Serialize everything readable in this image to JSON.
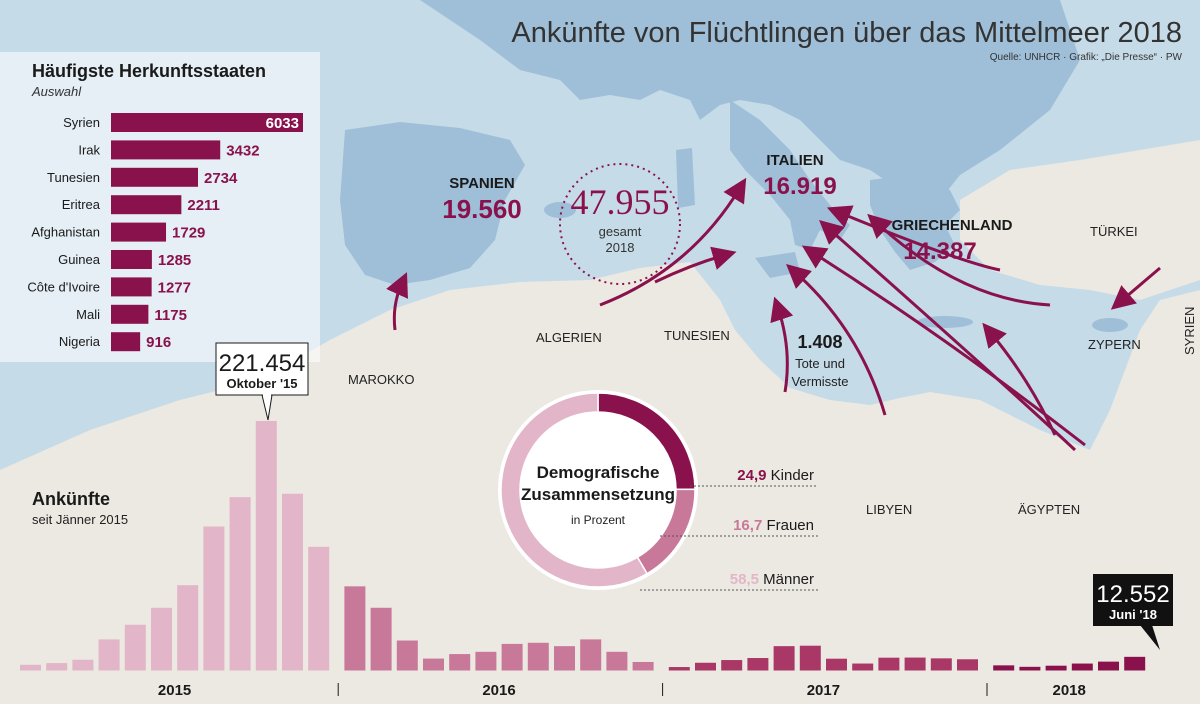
{
  "title": "Ankünfte von Flüchtlingen über das Mittelmeer 2018",
  "source": "Quelle: UNHCR · Grafik: „Die Presse“ · PW",
  "colors": {
    "sea": "#c6dbe8",
    "sea_shelf": "#b2cde0",
    "land": "#ece9e2",
    "land_europe": "#9fbfd8",
    "accent": "#8a124c",
    "pink_2015": "#e3b5c8",
    "pink_2016": "#c87899",
    "pink_2017": "#a93866",
    "pink_2018": "#8a124c",
    "text": "#1a1a1a"
  },
  "origins_panel": {
    "title": "Häufigste Herkunftsstaaten",
    "subtitle": "Auswahl"
  },
  "arrivals_panel": {
    "title": "Ankünfte",
    "subtitle": "seit Jänner 2015",
    "peak_value": "221.454",
    "peak_label": "Oktober '15",
    "last_value": "12.552",
    "last_label": "Juni '18",
    "year_labels": [
      "2015",
      "2016",
      "2017",
      "2018"
    ]
  },
  "total": {
    "value": "47.955",
    "line1": "gesamt",
    "line2": "2018"
  },
  "country_totals": [
    {
      "name": "SPANIEN",
      "value": "19.560"
    },
    {
      "name": "ITALIEN",
      "value": "16.919"
    },
    {
      "name": "GRIECHENLAND",
      "value": "14.387"
    }
  ],
  "deaths": {
    "value": "1.408",
    "line1": "Tote und",
    "line2": "Vermisste"
  },
  "map_labels": {
    "marokko": "MAROKKO",
    "algerien": "ALGERIEN",
    "tunesien": "TUNESIEN",
    "libyen": "LIBYEN",
    "aegypten": "ÄGYPTEN",
    "tuerkei": "TÜRKEI",
    "zypern": "ZYPERN",
    "syrien": "SYRIEN"
  },
  "donut": {
    "title_line1": "Demografische",
    "title_line2": "Zusammensetzung",
    "unit": "in Prozent"
  },
  "icons": [
    "route-arrow-icon",
    "callout-pointer-icon"
  ],
  "chart_data": [
    {
      "type": "bar",
      "orientation": "horizontal",
      "title": "Häufigste Herkunftsstaaten",
      "subtitle": "Auswahl",
      "categories": [
        "Syrien",
        "Irak",
        "Tunesien",
        "Eritrea",
        "Afghanistan",
        "Guinea",
        "Côte d'Ivoire",
        "Mali",
        "Nigeria"
      ],
      "values": [
        6033,
        3432,
        2734,
        2211,
        1729,
        1285,
        1277,
        1175,
        916
      ],
      "value_labels": [
        "6033",
        "3432",
        "2734",
        "2211",
        "1729",
        "1285",
        "1277",
        "1175",
        "916"
      ]
    },
    {
      "type": "bar",
      "title": "Ankünfte",
      "subtitle": "seit Jänner 2015",
      "groups": [
        {
          "year": "2015",
          "values": [
            5500,
            7000,
            10000,
            28000,
            41000,
            56000,
            76000,
            128000,
            154000,
            221454,
            157000,
            110000
          ]
        },
        {
          "year": "2016",
          "values": [
            75000,
            56000,
            27000,
            11000,
            15000,
            17000,
            24000,
            25000,
            22000,
            28000,
            17000,
            8000
          ]
        },
        {
          "year": "2017",
          "values": [
            3500,
            7300,
            9700,
            11500,
            22000,
            22400,
            10900,
            6600,
            11800,
            11900,
            11200,
            10400
          ]
        },
        {
          "year": "2018",
          "values": [
            5000,
            3700,
            4700,
            6600,
            8300,
            12552
          ]
        }
      ],
      "annotations": [
        {
          "label": "221.454",
          "sub": "Oktober '15"
        },
        {
          "label": "12.552",
          "sub": "Juni '18"
        }
      ]
    },
    {
      "type": "pie",
      "title": "Demografische Zusammensetzung",
      "unit": "in Prozent",
      "slices": [
        {
          "label": "Kinder",
          "value": 24.9,
          "value_text": "24,9",
          "color": "#8a124c"
        },
        {
          "label": "Frauen",
          "value": 16.7,
          "value_text": "16,7",
          "color": "#c87899"
        },
        {
          "label": "Männer",
          "value": 58.5,
          "value_text": "58,5",
          "color": "#e3b5c8"
        }
      ]
    }
  ]
}
